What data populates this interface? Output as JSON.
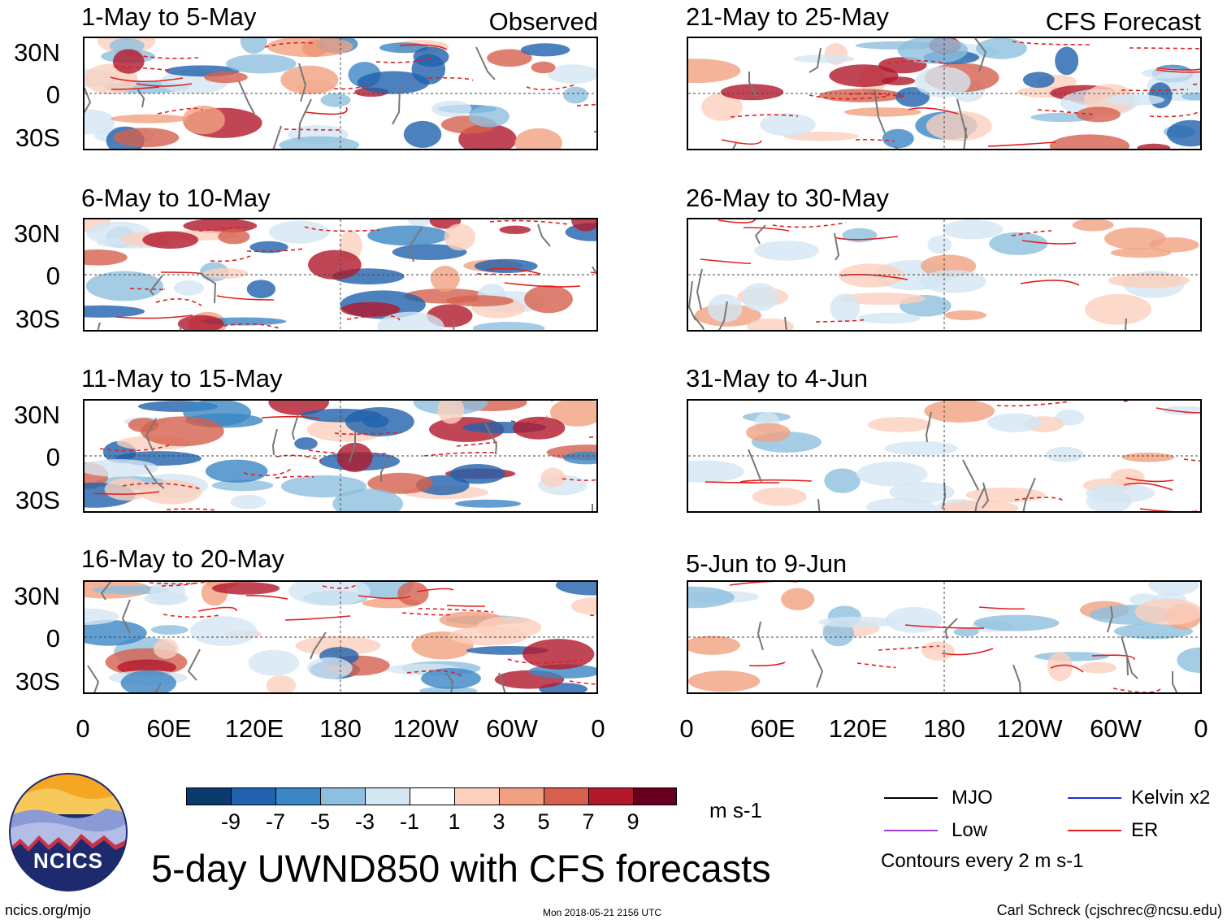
{
  "panels_left": [
    {
      "title": "1-May to 5-May",
      "tag": "Observed"
    },
    {
      "title": "6-May to 10-May",
      "tag": ""
    },
    {
      "title": "11-May to 15-May",
      "tag": ""
    },
    {
      "title": "16-May to 20-May",
      "tag": ""
    }
  ],
  "panels_right": [
    {
      "title": "21-May to 25-May",
      "tag": "CFS Forecast"
    },
    {
      "title": "26-May to 30-May",
      "tag": ""
    },
    {
      "title": "31-May to 4-Jun",
      "tag": ""
    },
    {
      "title": "5-Jun to 9-Jun",
      "tag": ""
    }
  ],
  "lat_labels": [
    "30N",
    "0",
    "30S"
  ],
  "lon_labels": [
    "0",
    "60E",
    "120E",
    "180",
    "120W",
    "60W",
    "0"
  ],
  "colorbar": {
    "labels": [
      "-9",
      "-7",
      "-5",
      "-3",
      "-1",
      "1",
      "3",
      "5",
      "7",
      "9"
    ],
    "units": "m s-1",
    "colors": [
      "#0a3a6e",
      "#1f62ad",
      "#3b86c4",
      "#8dbfdf",
      "#d3e6f2",
      "#ffffff",
      "#fbd0bd",
      "#f1a181",
      "#d6604d",
      "#b2182b",
      "#67001f"
    ]
  },
  "legend": {
    "mjo": "MJO",
    "kelvin": "Kelvin x2",
    "low": "Low",
    "er": "ER",
    "contours": "Contours every 2 m s-1",
    "colors": {
      "mjo": "#000000",
      "kelvin": "#2233cc",
      "low": "#a040e0",
      "er": "#e02020"
    }
  },
  "logo_text": "NCICS",
  "main_title": "5-day UWND850 with CFS forecasts",
  "footer_left": "ncics.org/mjo",
  "footer_center": "Mon 2018-05-21 2156 UTC",
  "footer_right": "Carl Schreck (cjschrec@ncsu.edu)"
}
